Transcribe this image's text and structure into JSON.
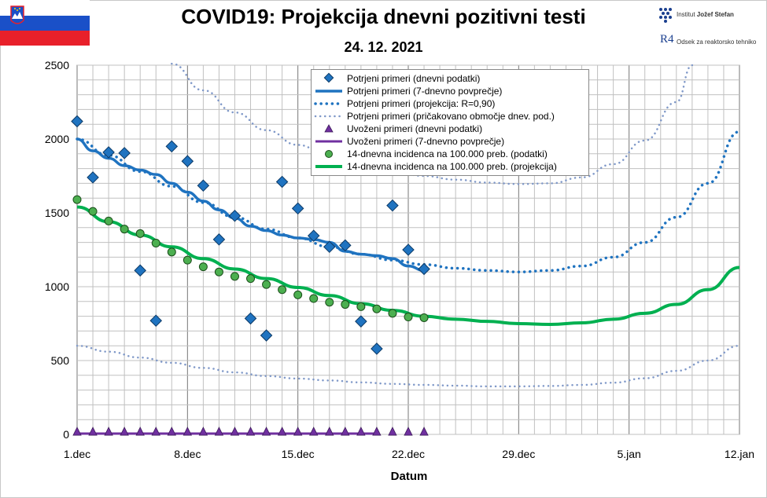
{
  "header": {
    "title": "COVID19: Projekcija dnevni pozitivni testi",
    "date": "24. 12. 2021"
  },
  "logo": {
    "institute_prefix": "Institut ",
    "institute_name": "Jožef Stefan",
    "r4_mark": "R4",
    "department": "Odsek za reaktorsko tehniko"
  },
  "flag": {
    "colors": [
      "#ffffff",
      "#1a50c8",
      "#e8202a"
    ],
    "emblem": "slovenian-coat-of-arms"
  },
  "colors": {
    "blue": "#1f73c0",
    "dotted_blue": "#1f73c0",
    "light_dotted": "#7f98c8",
    "purple": "#7030a0",
    "green": "#00b050",
    "green_marker": "#4caf50",
    "grid": "#c0c0c0",
    "grid_week": "#777777"
  },
  "chart_data": {
    "type": "line",
    "xlabel": "Datum",
    "ylabel": "",
    "x_unit": "days since 1.dec 2021",
    "xlim": [
      0,
      42
    ],
    "ylim": [
      0,
      2500
    ],
    "y_ticks": [
      0,
      500,
      1000,
      1500,
      2000,
      2500
    ],
    "x_ticks": [
      {
        "x": 0,
        "label": "1.dec"
      },
      {
        "x": 7,
        "label": "8.dec"
      },
      {
        "x": 14,
        "label": "15.dec"
      },
      {
        "x": 21,
        "label": "22.dec"
      },
      {
        "x": 28,
        "label": "29.dec"
      },
      {
        "x": 35,
        "label": "5.jan"
      },
      {
        "x": 42,
        "label": "12.jan"
      }
    ],
    "grid": true,
    "legend_position": "top-center",
    "series": [
      {
        "name": "Potrjeni primeri (dnevni podatki)",
        "style": "diamond-markers",
        "x": [
          0,
          1,
          2,
          3,
          4,
          5,
          6,
          7,
          8,
          9,
          10,
          11,
          12,
          13,
          14,
          15,
          16,
          17,
          18,
          19,
          20,
          21,
          22
        ],
        "y": [
          2120,
          1740,
          1910,
          1905,
          1110,
          770,
          1950,
          1850,
          1685,
          1320,
          1480,
          785,
          670,
          1710,
          1530,
          1345,
          1270,
          1280,
          765,
          580,
          1550,
          1250,
          1120
        ]
      },
      {
        "name": "Potrjeni primeri (7-dnevno povprečje)",
        "style": "solid-blue",
        "x": [
          0,
          1,
          2,
          3,
          4,
          5,
          6,
          7,
          8,
          9,
          10,
          11,
          12,
          13,
          14,
          15,
          16,
          17,
          18,
          19,
          20,
          21,
          22
        ],
        "y": [
          2000,
          1920,
          1870,
          1820,
          1790,
          1760,
          1700,
          1640,
          1580,
          1520,
          1465,
          1410,
          1380,
          1350,
          1330,
          1320,
          1300,
          1240,
          1220,
          1210,
          1190,
          1140,
          1110
        ]
      },
      {
        "name": "Potrjeni primeri (projekcija: R=0,90)",
        "style": "dotted-blue",
        "x": [
          0,
          2,
          4,
          6,
          8,
          10,
          12,
          14,
          16,
          18,
          20,
          22,
          24,
          26,
          28,
          30,
          32,
          34,
          36,
          38,
          40,
          42
        ],
        "y": [
          2000,
          1890,
          1780,
          1680,
          1570,
          1470,
          1390,
          1330,
          1270,
          1220,
          1180,
          1150,
          1125,
          1110,
          1100,
          1110,
          1140,
          1200,
          1300,
          1470,
          1700,
          2050
        ]
      },
      {
        "name": "Potrjeni primeri (pričakovano območje dnev. pod.)",
        "style": "dotted-light",
        "x": [
          6,
          8,
          10,
          12,
          14,
          16,
          18,
          20,
          22,
          24,
          26,
          28,
          30,
          32,
          34,
          36,
          38,
          39
        ],
        "y": [
          2510,
          2330,
          2180,
          2060,
          1960,
          1880,
          1820,
          1780,
          1750,
          1725,
          1705,
          1695,
          1700,
          1740,
          1830,
          1990,
          2250,
          2500
        ]
      },
      {
        "name": "Potrjeni primeri (pričakovano območje dnev. pod.) spodnja meja",
        "style": "dotted-light",
        "x": [
          0,
          2,
          4,
          6,
          8,
          10,
          12,
          14,
          16,
          18,
          20,
          22,
          24,
          26,
          28,
          30,
          32,
          34,
          36,
          38,
          40,
          42
        ],
        "y": [
          600,
          560,
          520,
          485,
          450,
          420,
          395,
          378,
          365,
          352,
          342,
          335,
          330,
          325,
          325,
          328,
          335,
          350,
          380,
          430,
          500,
          600
        ]
      },
      {
        "name": "Uvoženi primeri (dnevni podatki)",
        "style": "triangle-markers",
        "x": [
          0,
          1,
          2,
          3,
          4,
          5,
          6,
          7,
          8,
          9,
          10,
          11,
          12,
          13,
          14,
          15,
          16,
          17,
          18,
          19,
          20,
          21,
          22
        ],
        "y": [
          5,
          5,
          5,
          5,
          5,
          5,
          5,
          5,
          5,
          5,
          5,
          5,
          5,
          5,
          5,
          5,
          5,
          5,
          5,
          5,
          5,
          5,
          5
        ]
      },
      {
        "name": "Uvoženi primeri (7-dnevno povprečje)",
        "style": "solid-purple",
        "x": [
          0,
          19
        ],
        "y": [
          5,
          5
        ]
      },
      {
        "name": "14-dnevna incidenca na 100.000 preb. (podatki)",
        "style": "circle-markers",
        "x": [
          0,
          1,
          2,
          3,
          4,
          5,
          6,
          7,
          8,
          9,
          10,
          11,
          12,
          13,
          14,
          15,
          16,
          17,
          18,
          19,
          20,
          21,
          22
        ],
        "y": [
          1590,
          1510,
          1445,
          1390,
          1360,
          1295,
          1235,
          1180,
          1135,
          1100,
          1070,
          1055,
          1015,
          980,
          945,
          920,
          895,
          880,
          865,
          850,
          820,
          795,
          790
        ]
      },
      {
        "name": "14-dnevna incidenca na 100.000 preb. (projekcija)",
        "style": "solid-green",
        "x": [
          0,
          2,
          4,
          6,
          8,
          10,
          12,
          14,
          16,
          18,
          20,
          22,
          24,
          26,
          28,
          30,
          32,
          34,
          36,
          38,
          40,
          42
        ],
        "y": [
          1540,
          1440,
          1350,
          1270,
          1190,
          1120,
          1055,
          995,
          940,
          885,
          840,
          800,
          780,
          765,
          750,
          745,
          755,
          780,
          820,
          880,
          980,
          1130
        ]
      }
    ]
  },
  "legend": {
    "items": [
      {
        "label": "Potrjeni primeri (dnevni podatki)",
        "symbol": "diamond"
      },
      {
        "label": "Potrjeni primeri (7-dnevno povprečje)",
        "symbol": "line-blue"
      },
      {
        "label": "Potrjeni primeri (projekcija: R=0,90)",
        "symbol": "dot-blue"
      },
      {
        "label": "Potrjeni primeri (pričakovano območje dnev. pod.)",
        "symbol": "dot-light"
      },
      {
        "label": "Uvoženi primeri (dnevni podatki)",
        "symbol": "triangle"
      },
      {
        "label": "Uvoženi primeri (7-dnevno povprečje)",
        "symbol": "line-purple"
      },
      {
        "label": "14-dnevna incidenca na 100.000 preb. (podatki)",
        "symbol": "circle"
      },
      {
        "label": "14-dnevna incidenca na 100.000 preb. (projekcija)",
        "symbol": "line-green"
      }
    ]
  }
}
